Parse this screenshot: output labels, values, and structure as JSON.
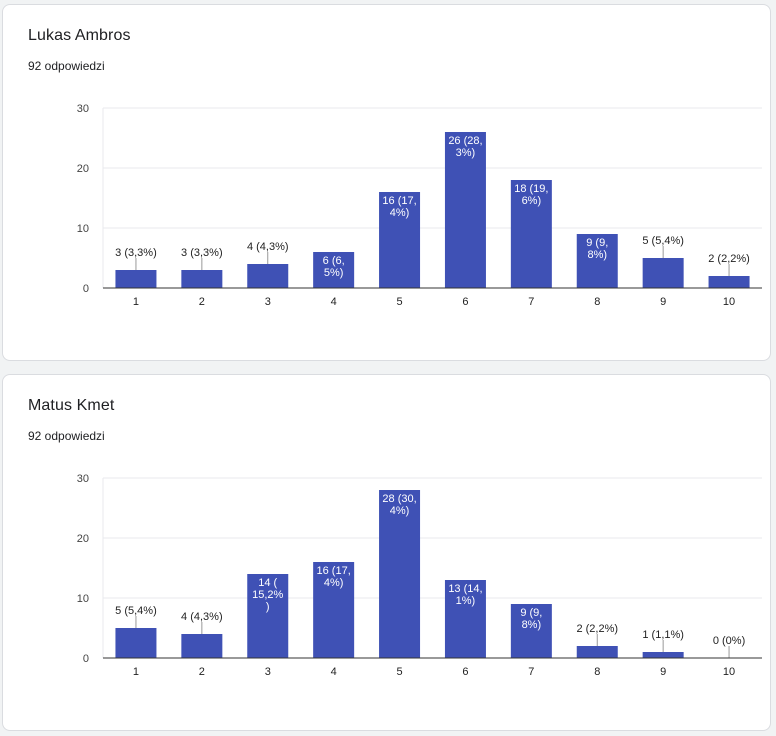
{
  "cards": [
    {
      "title": "Lukas Ambros",
      "subtitle": "92 odpowiedzi"
    },
    {
      "title": "Matus Kmet",
      "subtitle": "92 odpowiedzi"
    }
  ],
  "colors": {
    "bar": "#3f51b5",
    "grid": "#e8eaed",
    "axis": "#333333",
    "label_inside": "#ffffff",
    "label_outside": "#222222"
  },
  "chart_data": [
    {
      "type": "bar",
      "title": "Lukas Ambros",
      "categories": [
        "1",
        "2",
        "3",
        "4",
        "5",
        "6",
        "7",
        "8",
        "9",
        "10"
      ],
      "values": [
        3,
        3,
        4,
        6,
        16,
        26,
        18,
        9,
        5,
        2
      ],
      "labels": [
        [
          "3 (3,3%)"
        ],
        [
          "3 (3,3%)"
        ],
        [
          "4 (4,3%)"
        ],
        [
          "6 (6,",
          "5%)"
        ],
        [
          "16 (17,",
          "4%)"
        ],
        [
          "26 (28,",
          "3%)"
        ],
        [
          "18 (19,",
          "6%)"
        ],
        [
          "9 (9,",
          "8%)"
        ],
        [
          "5 (5,4%)"
        ],
        [
          "2 (2,2%)"
        ]
      ],
      "label_inside": [
        false,
        false,
        false,
        true,
        true,
        true,
        true,
        true,
        false,
        false
      ],
      "ylim": [
        0,
        30
      ],
      "yticks": [
        "0",
        "10",
        "20",
        "30"
      ],
      "grid": true,
      "xlabel": "",
      "ylabel": ""
    },
    {
      "type": "bar",
      "title": "Matus Kmet",
      "categories": [
        "1",
        "2",
        "3",
        "4",
        "5",
        "6",
        "7",
        "8",
        "9",
        "10"
      ],
      "values": [
        5,
        4,
        14,
        16,
        28,
        13,
        9,
        2,
        1,
        0
      ],
      "labels": [
        [
          "5 (5,4%)"
        ],
        [
          "4 (4,3%)"
        ],
        [
          "14 (",
          "15,2%",
          ")"
        ],
        [
          "16 (17,",
          "4%)"
        ],
        [
          "28 (30,",
          "4%)"
        ],
        [
          "13 (14,",
          "1%)"
        ],
        [
          "9 (9,",
          "8%)"
        ],
        [
          "2 (2,2%)"
        ],
        [
          "1 (1,1%)"
        ],
        [
          "0 (0%)"
        ]
      ],
      "label_inside": [
        false,
        false,
        true,
        true,
        true,
        true,
        true,
        false,
        false,
        false
      ],
      "ylim": [
        0,
        30
      ],
      "yticks": [
        "0",
        "10",
        "20",
        "30"
      ],
      "grid": true,
      "xlabel": "",
      "ylabel": ""
    }
  ]
}
